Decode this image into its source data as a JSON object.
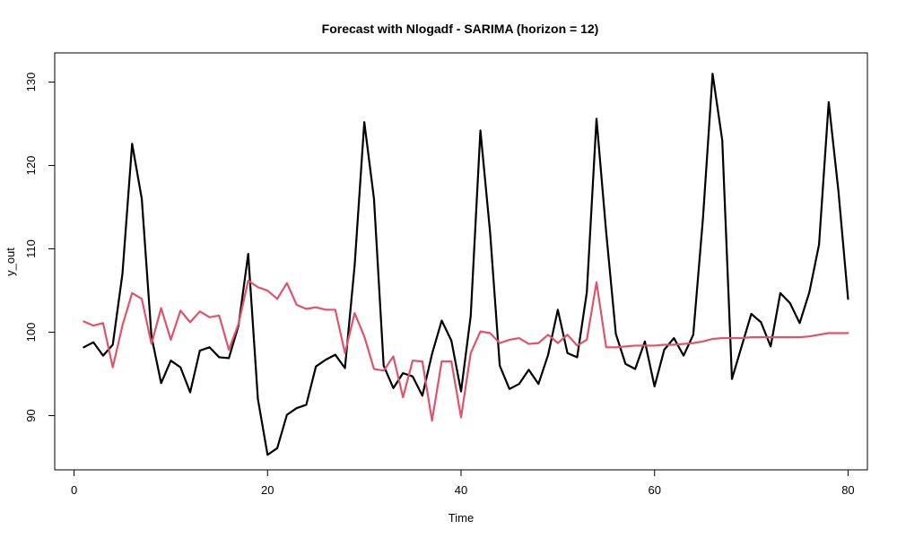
{
  "chart_data": {
    "type": "line",
    "title": "Forecast with Nlogadf - SARIMA (horizon = 12)",
    "xlabel": "Time",
    "ylabel": "y_out",
    "xlim": [
      -2,
      82
    ],
    "ylim": [
      83.5,
      133.5
    ],
    "x_ticks": [
      0,
      20,
      40,
      60,
      80
    ],
    "y_ticks": [
      90,
      100,
      110,
      120,
      130
    ],
    "grid": false,
    "colors": {
      "actual": "#000000",
      "forecast": "#DF536B"
    },
    "x": [
      1,
      2,
      3,
      4,
      5,
      6,
      7,
      8,
      9,
      10,
      11,
      12,
      13,
      14,
      15,
      16,
      17,
      18,
      19,
      20,
      21,
      22,
      23,
      24,
      25,
      26,
      27,
      28,
      29,
      30,
      31,
      32,
      33,
      34,
      35,
      36,
      37,
      38,
      39,
      40,
      41,
      42,
      43,
      44,
      45,
      46,
      47,
      48,
      49,
      50,
      51,
      52,
      53,
      54,
      55,
      56,
      57,
      58,
      59,
      60,
      61,
      62,
      63,
      64,
      65,
      66,
      67,
      68,
      69,
      70,
      71,
      72,
      73,
      74,
      75,
      76,
      77,
      78,
      79,
      80
    ],
    "series": [
      {
        "values": [
          98.2,
          98.8,
          97.2,
          98.5,
          107.0,
          122.6,
          116.0,
          99.5,
          93.9,
          96.6,
          95.8,
          92.8,
          97.8,
          98.2,
          97.0,
          96.9,
          100.8,
          109.4,
          92.0,
          85.3,
          86.1,
          90.1,
          90.9,
          91.3,
          95.9,
          96.7,
          97.3,
          95.7,
          108.0,
          125.2,
          116.0,
          96.0,
          93.3,
          95.1,
          94.7,
          92.4,
          97.4,
          101.4,
          99.0,
          92.9,
          102.0,
          124.2,
          112.0,
          96.0,
          93.2,
          93.8,
          95.5,
          93.8,
          97.3,
          102.7,
          97.5,
          97.0,
          104.8,
          125.6,
          112.0,
          99.8,
          96.2,
          95.6,
          98.9,
          93.5,
          97.9,
          99.3,
          97.2,
          99.7,
          113.6,
          131.0,
          123.0,
          94.4,
          98.3,
          102.2,
          101.2,
          98.3,
          104.7,
          103.5,
          101.1,
          104.8,
          110.5,
          127.6,
          117.0,
          104.0
        ]
      },
      {
        "values": [
          101.3,
          100.8,
          101.1,
          95.8,
          100.8,
          104.7,
          104.0,
          98.6,
          102.9,
          99.1,
          102.6,
          101.2,
          102.5,
          101.8,
          102.0,
          97.9,
          101.0,
          106.2,
          105.4,
          105.0,
          104.0,
          105.9,
          103.3,
          102.8,
          103.0,
          102.7,
          102.7,
          97.5,
          102.3,
          99.5,
          95.6,
          95.4,
          97.1,
          92.2,
          96.6,
          96.5,
          89.4,
          96.5,
          96.5,
          89.8,
          97.5,
          100.1,
          99.9,
          98.7,
          99.1,
          99.3,
          98.6,
          98.7,
          99.7,
          98.7,
          99.7,
          98.4,
          99.1,
          106.0,
          98.2,
          98.2,
          98.3,
          98.4,
          98.4,
          98.4,
          98.5,
          98.5,
          98.6,
          98.7,
          98.9,
          99.2,
          99.3,
          99.3,
          99.3,
          99.4,
          99.4,
          99.4,
          99.4,
          99.4,
          99.4,
          99.5,
          99.7,
          99.9,
          99.9,
          99.9
        ]
      }
    ]
  }
}
